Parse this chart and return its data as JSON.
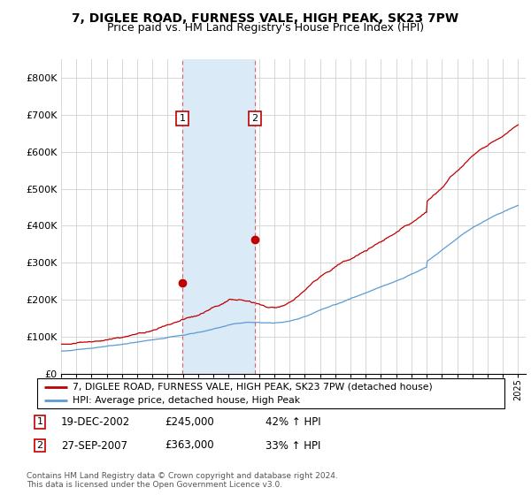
{
  "title": "7, DIGLEE ROAD, FURNESS VALE, HIGH PEAK, SK23 7PW",
  "subtitle": "Price paid vs. HM Land Registry's House Price Index (HPI)",
  "ylim": [
    0,
    850000
  ],
  "yticks": [
    0,
    100000,
    200000,
    300000,
    400000,
    500000,
    600000,
    700000,
    800000
  ],
  "ytick_labels": [
    "£0",
    "£100K",
    "£200K",
    "£300K",
    "£400K",
    "£500K",
    "£600K",
    "£700K",
    "£800K"
  ],
  "hpi_color": "#5b9bd5",
  "price_color": "#c00000",
  "shade_color": "#daeaf7",
  "vline_color": "#e06060",
  "sale1_year": 2002.96,
  "sale1_price": 245000,
  "sale2_year": 2007.73,
  "sale2_price": 363000,
  "legend_line1": "7, DIGLEE ROAD, FURNESS VALE, HIGH PEAK, SK23 7PW (detached house)",
  "legend_line2": "HPI: Average price, detached house, High Peak",
  "table_row1": [
    "1",
    "19-DEC-2002",
    "£245,000",
    "42% ↑ HPI"
  ],
  "table_row2": [
    "2",
    "27-SEP-2007",
    "£363,000",
    "33% ↑ HPI"
  ],
  "footnote": "Contains HM Land Registry data © Crown copyright and database right 2024.\nThis data is licensed under the Open Government Licence v3.0.",
  "title_fontsize": 10,
  "subtitle_fontsize": 9
}
